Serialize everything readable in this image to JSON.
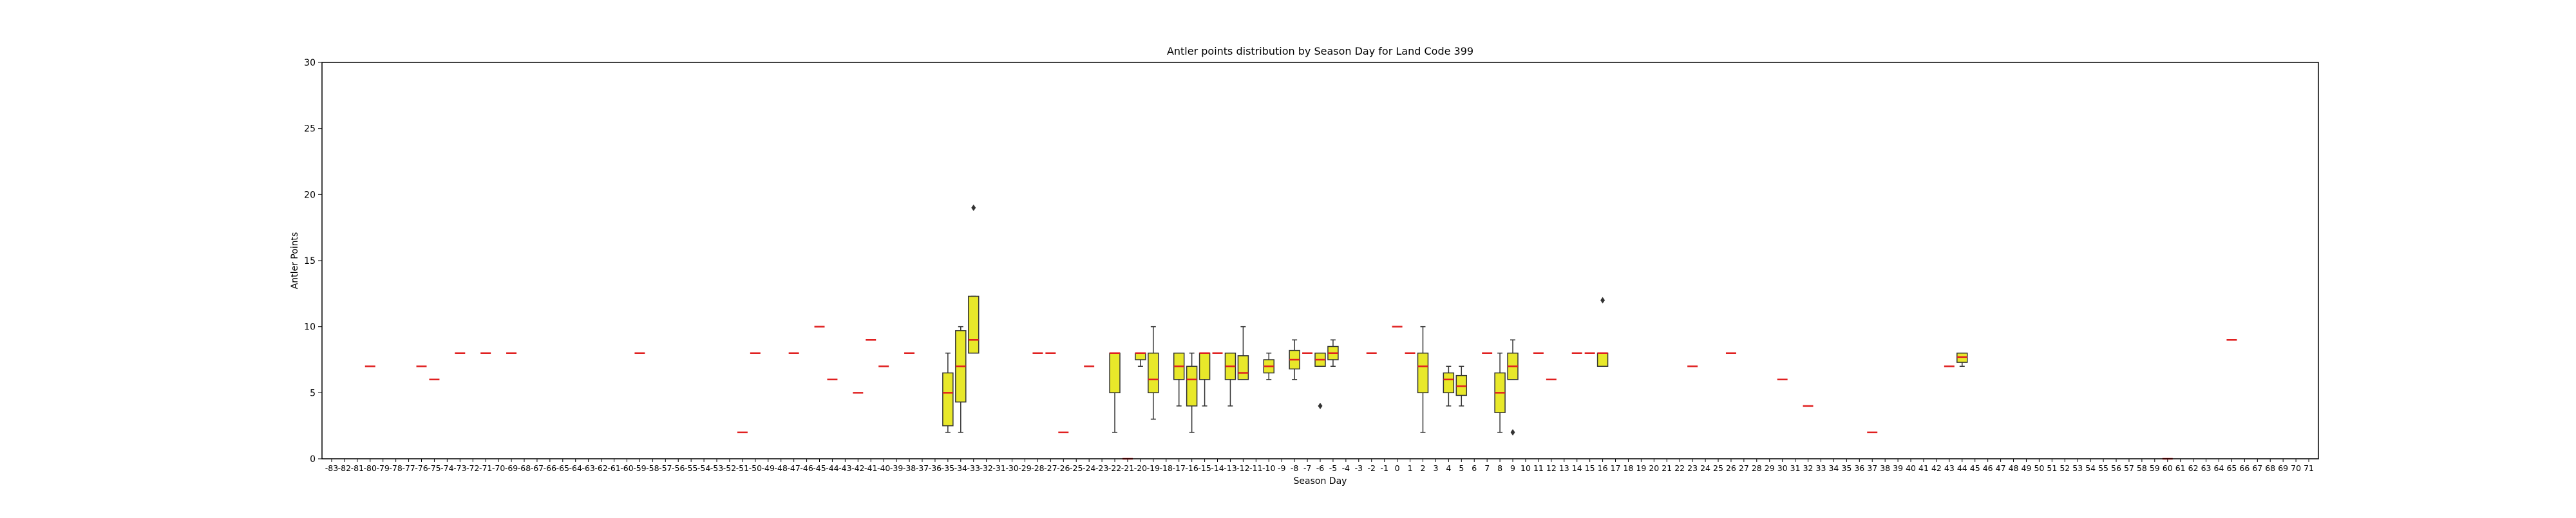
{
  "chart_data": {
    "type": "box",
    "title": "Antler points distribution by Season Day for Land Code 399",
    "xlabel": "Season Day",
    "ylabel": "Antler Points",
    "ylim": [
      0,
      30
    ],
    "yticks": [
      0,
      5,
      10,
      15,
      20,
      25,
      30
    ],
    "grid": false,
    "legend": "none",
    "colors": {
      "box_fill": "#e8e82a",
      "box_edge": "#333333",
      "median": "#e02020",
      "whisker": "#333333"
    },
    "x_start": -83,
    "x_end": 71,
    "boxes": [
      {
        "x": -80,
        "q1": 7,
        "med": 7,
        "q3": 7,
        "lo": 7,
        "hi": 7,
        "fliers": []
      },
      {
        "x": -76,
        "q1": 7,
        "med": 7,
        "q3": 7,
        "lo": 7,
        "hi": 7,
        "fliers": []
      },
      {
        "x": -75,
        "q1": 6,
        "med": 6,
        "q3": 6,
        "lo": 6,
        "hi": 6,
        "fliers": []
      },
      {
        "x": -73,
        "q1": 8,
        "med": 8,
        "q3": 8,
        "lo": 8,
        "hi": 8,
        "fliers": []
      },
      {
        "x": -71,
        "q1": 8,
        "med": 8,
        "q3": 8,
        "lo": 8,
        "hi": 8,
        "fliers": []
      },
      {
        "x": -69,
        "q1": 8,
        "med": 8,
        "q3": 8,
        "lo": 8,
        "hi": 8,
        "fliers": []
      },
      {
        "x": -59,
        "q1": 8,
        "med": 8,
        "q3": 8,
        "lo": 8,
        "hi": 8,
        "fliers": []
      },
      {
        "x": -51,
        "q1": 2,
        "med": 2,
        "q3": 2,
        "lo": 2,
        "hi": 2,
        "fliers": []
      },
      {
        "x": -50,
        "q1": 8,
        "med": 8,
        "q3": 8,
        "lo": 8,
        "hi": 8,
        "fliers": []
      },
      {
        "x": -47,
        "q1": 8,
        "med": 8,
        "q3": 8,
        "lo": 8,
        "hi": 8,
        "fliers": []
      },
      {
        "x": -45,
        "q1": 10,
        "med": 10,
        "q3": 10,
        "lo": 10,
        "hi": 10,
        "fliers": []
      },
      {
        "x": -44,
        "q1": 6,
        "med": 6,
        "q3": 6,
        "lo": 6,
        "hi": 6,
        "fliers": []
      },
      {
        "x": -42,
        "q1": 5,
        "med": 5,
        "q3": 5,
        "lo": 5,
        "hi": 5,
        "fliers": []
      },
      {
        "x": -41,
        "q1": 9,
        "med": 9,
        "q3": 9,
        "lo": 9,
        "hi": 9,
        "fliers": []
      },
      {
        "x": -40,
        "q1": 7,
        "med": 7,
        "q3": 7,
        "lo": 7,
        "hi": 7,
        "fliers": []
      },
      {
        "x": -38,
        "q1": 8,
        "med": 8,
        "q3": 8,
        "lo": 8,
        "hi": 8,
        "fliers": []
      },
      {
        "x": -35,
        "q1": 2.5,
        "med": 5,
        "q3": 6.5,
        "lo": 2,
        "hi": 8,
        "fliers": []
      },
      {
        "x": -34,
        "q1": 4.3,
        "med": 7,
        "q3": 9.7,
        "lo": 2,
        "hi": 10,
        "fliers": []
      },
      {
        "x": -33,
        "q1": 8,
        "med": 9,
        "q3": 12.3,
        "lo": 8,
        "hi": 12.3,
        "fliers": [
          19
        ]
      },
      {
        "x": -28,
        "q1": 8,
        "med": 8,
        "q3": 8,
        "lo": 8,
        "hi": 8,
        "fliers": []
      },
      {
        "x": -27,
        "q1": 8,
        "med": 8,
        "q3": 8,
        "lo": 8,
        "hi": 8,
        "fliers": []
      },
      {
        "x": -26,
        "q1": 2,
        "med": 2,
        "q3": 2,
        "lo": 2,
        "hi": 2,
        "fliers": []
      },
      {
        "x": -24,
        "q1": 7,
        "med": 7,
        "q3": 7,
        "lo": 7,
        "hi": 7,
        "fliers": []
      },
      {
        "x": -22,
        "q1": 5,
        "med": 8,
        "q3": 8,
        "lo": 2,
        "hi": 8,
        "fliers": []
      },
      {
        "x": -21,
        "q1": 0,
        "med": 0,
        "q3": 0,
        "lo": 0,
        "hi": 0,
        "fliers": []
      },
      {
        "x": -20,
        "q1": 7.5,
        "med": 8,
        "q3": 8,
        "lo": 7,
        "hi": 8,
        "fliers": []
      },
      {
        "x": -19,
        "q1": 5,
        "med": 6,
        "q3": 8,
        "lo": 3,
        "hi": 10,
        "fliers": []
      },
      {
        "x": -17,
        "q1": 6,
        "med": 7,
        "q3": 8,
        "lo": 4,
        "hi": 8,
        "fliers": []
      },
      {
        "x": -16,
        "q1": 4,
        "med": 6,
        "q3": 7,
        "lo": 2,
        "hi": 8,
        "fliers": []
      },
      {
        "x": -15,
        "q1": 6,
        "med": 8,
        "q3": 8,
        "lo": 4,
        "hi": 8,
        "fliers": []
      },
      {
        "x": -14,
        "q1": 8,
        "med": 8,
        "q3": 8,
        "lo": 8,
        "hi": 8,
        "fliers": []
      },
      {
        "x": -13,
        "q1": 6,
        "med": 7,
        "q3": 8,
        "lo": 4,
        "hi": 8,
        "fliers": []
      },
      {
        "x": -12,
        "q1": 6,
        "med": 6.5,
        "q3": 7.8,
        "lo": 6,
        "hi": 10,
        "fliers": []
      },
      {
        "x": -10,
        "q1": 6.5,
        "med": 7,
        "q3": 7.5,
        "lo": 6,
        "hi": 8,
        "fliers": []
      },
      {
        "x": -8,
        "q1": 6.8,
        "med": 7.5,
        "q3": 8.2,
        "lo": 6,
        "hi": 9,
        "fliers": []
      },
      {
        "x": -7,
        "q1": 8,
        "med": 8,
        "q3": 8,
        "lo": 8,
        "hi": 8,
        "fliers": []
      },
      {
        "x": -6,
        "q1": 7,
        "med": 7.5,
        "q3": 8,
        "lo": 7,
        "hi": 8,
        "fliers": [
          4
        ]
      },
      {
        "x": -5,
        "q1": 7.5,
        "med": 8,
        "q3": 8.5,
        "lo": 7,
        "hi": 9,
        "fliers": []
      },
      {
        "x": -2,
        "q1": 8,
        "med": 8,
        "q3": 8,
        "lo": 8,
        "hi": 8,
        "fliers": []
      },
      {
        "x": 0,
        "q1": 10,
        "med": 10,
        "q3": 10,
        "lo": 10,
        "hi": 10,
        "fliers": []
      },
      {
        "x": 1,
        "q1": 8,
        "med": 8,
        "q3": 8,
        "lo": 8,
        "hi": 8,
        "fliers": []
      },
      {
        "x": 2,
        "q1": 5,
        "med": 7,
        "q3": 8,
        "lo": 2,
        "hi": 10,
        "fliers": []
      },
      {
        "x": 4,
        "q1": 5,
        "med": 6,
        "q3": 6.5,
        "lo": 4,
        "hi": 7,
        "fliers": []
      },
      {
        "x": 5,
        "q1": 4.8,
        "med": 5.5,
        "q3": 6.3,
        "lo": 4,
        "hi": 7,
        "fliers": []
      },
      {
        "x": 7,
        "q1": 8,
        "med": 8,
        "q3": 8,
        "lo": 8,
        "hi": 8,
        "fliers": []
      },
      {
        "x": 8,
        "q1": 3.5,
        "med": 5,
        "q3": 6.5,
        "lo": 2,
        "hi": 8,
        "fliers": []
      },
      {
        "x": 9,
        "q1": 6,
        "med": 7,
        "q3": 8,
        "lo": 6,
        "hi": 9,
        "fliers": [
          2
        ]
      },
      {
        "x": 11,
        "q1": 8,
        "med": 8,
        "q3": 8,
        "lo": 8,
        "hi": 8,
        "fliers": []
      },
      {
        "x": 12,
        "q1": 6,
        "med": 6,
        "q3": 6,
        "lo": 6,
        "hi": 6,
        "fliers": []
      },
      {
        "x": 14,
        "q1": 8,
        "med": 8,
        "q3": 8,
        "lo": 8,
        "hi": 8,
        "fliers": []
      },
      {
        "x": 15,
        "q1": 8,
        "med": 8,
        "q3": 8,
        "lo": 8,
        "hi": 8,
        "fliers": []
      },
      {
        "x": 16,
        "q1": 7,
        "med": 8,
        "q3": 8,
        "lo": 7,
        "hi": 8,
        "fliers": [
          12
        ]
      },
      {
        "x": 23,
        "q1": 7,
        "med": 7,
        "q3": 7,
        "lo": 7,
        "hi": 7,
        "fliers": []
      },
      {
        "x": 26,
        "q1": 8,
        "med": 8,
        "q3": 8,
        "lo": 8,
        "hi": 8,
        "fliers": []
      },
      {
        "x": 30,
        "q1": 6,
        "med": 6,
        "q3": 6,
        "lo": 6,
        "hi": 6,
        "fliers": []
      },
      {
        "x": 32,
        "q1": 4,
        "med": 4,
        "q3": 4,
        "lo": 4,
        "hi": 4,
        "fliers": []
      },
      {
        "x": 37,
        "q1": 2,
        "med": 2,
        "q3": 2,
        "lo": 2,
        "hi": 2,
        "fliers": []
      },
      {
        "x": 43,
        "q1": 7,
        "med": 7,
        "q3": 7,
        "lo": 7,
        "hi": 7,
        "fliers": []
      },
      {
        "x": 44,
        "q1": 7.3,
        "med": 7.7,
        "q3": 8,
        "lo": 7,
        "hi": 8,
        "fliers": []
      },
      {
        "x": 60,
        "q1": 0,
        "med": 0,
        "q3": 0,
        "lo": 0,
        "hi": 0,
        "fliers": []
      },
      {
        "x": 65,
        "q1": 9,
        "med": 9,
        "q3": 9,
        "lo": 9,
        "hi": 9,
        "fliers": []
      }
    ]
  }
}
